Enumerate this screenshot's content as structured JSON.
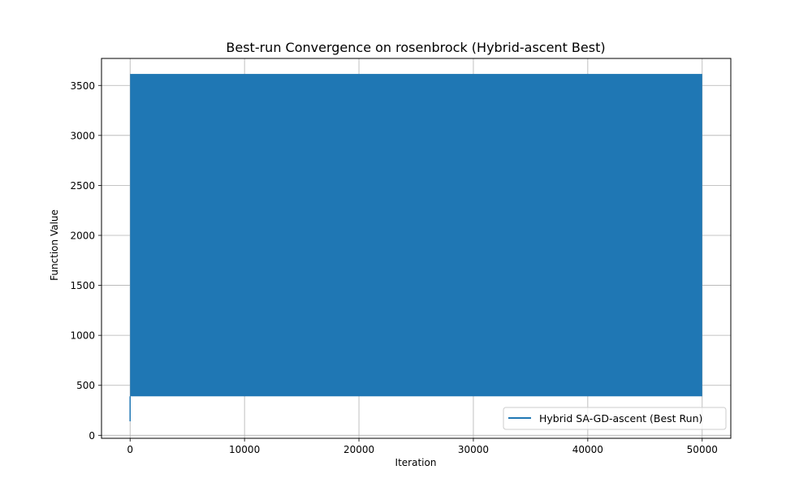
{
  "chart_data": {
    "type": "line",
    "title": "Best-run Convergence on rosenbrock (Hybrid-ascent Best)",
    "xlabel": "Iteration",
    "ylabel": "Function Value",
    "xlim": [
      -2500,
      52500
    ],
    "ylim": [
      -30,
      3770
    ],
    "xticks": [
      0,
      10000,
      20000,
      30000,
      40000,
      50000
    ],
    "yticks": [
      0,
      500,
      1000,
      1500,
      2000,
      2500,
      3000,
      3500
    ],
    "grid": true,
    "legend_position": "lower-right",
    "series": [
      {
        "name": "Hybrid SA-GD-ascent (Best Run)",
        "color": "#1f77b4",
        "start_point": [
          0,
          140
        ],
        "oscillation_band": {
          "x_range": [
            0,
            50000
          ],
          "low": 390,
          "high": 3615
        }
      }
    ]
  }
}
